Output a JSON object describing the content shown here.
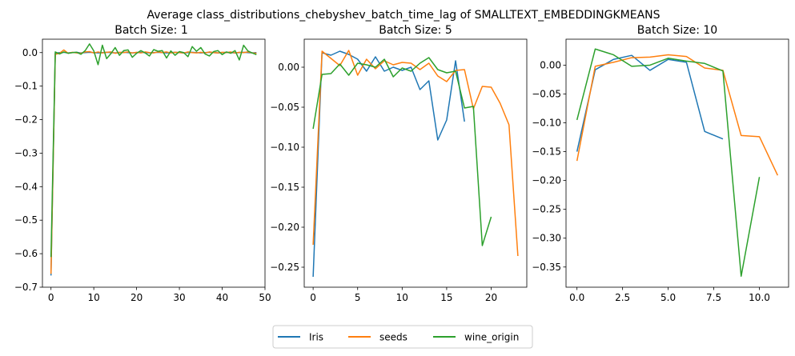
{
  "suptitle": "Average class_distributions_chebyshev_batch_time_lag of SMALLTEXT_EMBEDDINGKMEANS",
  "colors": {
    "Iris": "#1f77b4",
    "seeds": "#ff7f0e",
    "wine_origin": "#2ca02c"
  },
  "legend": {
    "placement": "bottom-center",
    "entries": [
      "Iris",
      "seeds",
      "wine_origin"
    ]
  },
  "chart_data": [
    {
      "type": "line",
      "title": "Batch Size: 1",
      "xlabel": "",
      "ylabel": "",
      "xlim": [
        -2,
        50
      ],
      "ylim": [
        -0.7,
        0.04
      ],
      "xticks": [
        0,
        10,
        20,
        30,
        40,
        50
      ],
      "xtick_labels": [
        "0",
        "10",
        "20",
        "30",
        "40",
        "50"
      ],
      "yticks": [
        0.0,
        -0.1,
        -0.2,
        -0.3,
        -0.4,
        -0.5,
        -0.6,
        -0.7
      ],
      "ytick_labels": [
        "0.0",
        "−0.1",
        "−0.2",
        "−0.3",
        "−0.4",
        "−0.5",
        "−0.6",
        "−0.7"
      ],
      "grid": false,
      "series": [
        {
          "name": "Iris",
          "x": [
            0,
            1,
            2,
            3,
            4,
            5,
            6,
            7,
            8,
            9,
            10,
            11,
            12,
            13,
            14,
            15,
            16,
            17,
            18,
            19,
            20,
            21,
            22,
            23,
            24,
            25,
            26,
            27,
            28,
            29,
            30,
            31,
            32,
            33,
            34,
            35,
            36,
            37,
            38,
            39,
            40,
            41,
            42,
            43,
            44,
            45,
            46,
            47,
            48
          ],
          "y": [
            -0.665,
            -0.002,
            0.0,
            0.001,
            -0.001,
            0.0,
            0.001,
            -0.001,
            0.0,
            0.001,
            0.0,
            -0.001,
            0.0,
            0.001,
            0.0,
            -0.001,
            0.0,
            0.001,
            0.0,
            -0.001,
            0.0,
            0.001,
            0.0,
            -0.001,
            0.0,
            0.001,
            0.0,
            -0.001,
            0.0,
            0.001,
            0.0,
            -0.001,
            0.0,
            0.001,
            0.0,
            -0.001,
            0.0,
            0.001,
            0.0,
            -0.001,
            0.0,
            0.001,
            0.0,
            -0.001,
            0.0,
            0.001,
            0.0,
            -0.001,
            0.0
          ]
        },
        {
          "name": "seeds",
          "x": [
            0,
            1,
            2,
            3,
            4,
            5,
            6,
            7,
            8,
            9,
            10,
            11,
            12,
            13,
            14,
            15,
            16,
            17,
            18,
            19,
            20,
            21,
            22,
            23,
            24,
            25,
            26,
            27,
            28,
            29,
            30,
            31,
            32,
            33,
            34,
            35,
            36,
            37,
            38,
            39,
            40,
            41,
            42,
            43,
            44,
            45,
            46,
            47,
            48
          ],
          "y": [
            -0.66,
            -0.005,
            -0.002,
            0.008,
            -0.002,
            0.001,
            -0.001,
            -0.002,
            0.002,
            0.003,
            -0.001,
            0.002,
            -0.001,
            0.001,
            0.002,
            -0.002,
            0.001,
            0.0,
            0.002,
            -0.001,
            0.001,
            -0.001,
            0.002,
            0.0,
            -0.001,
            0.002,
            0.0,
            0.002,
            -0.001,
            0.001,
            0.0,
            -0.001,
            0.002,
            0.0,
            -0.001,
            0.001,
            -0.001,
            0.002,
            0.0,
            -0.001,
            0.001,
            0.0,
            0.002,
            -0.001,
            0.001,
            0.0,
            0.002,
            -0.001,
            -0.002
          ]
        },
        {
          "name": "wine_origin",
          "x": [
            0,
            1,
            2,
            3,
            4,
            5,
            6,
            7,
            8,
            9,
            10,
            11,
            12,
            13,
            14,
            15,
            16,
            17,
            18,
            19,
            20,
            21,
            22,
            23,
            24,
            25,
            26,
            27,
            28,
            29,
            30,
            31,
            32,
            33,
            34,
            35,
            36,
            37,
            38,
            39,
            40,
            41,
            42,
            43,
            44,
            45,
            46,
            47,
            48
          ],
          "y": [
            -0.61,
            0.002,
            -0.004,
            0.002,
            -0.002,
            0.0,
            0.001,
            -0.005,
            0.006,
            0.026,
            0.005,
            -0.036,
            0.022,
            -0.018,
            -0.003,
            0.015,
            -0.008,
            0.006,
            0.008,
            -0.014,
            -0.002,
            0.006,
            -0.001,
            -0.01,
            0.009,
            0.004,
            0.006,
            -0.016,
            0.005,
            -0.008,
            0.003,
            0.0,
            -0.012,
            0.018,
            0.004,
            0.015,
            -0.004,
            -0.01,
            0.003,
            0.006,
            -0.006,
            0.002,
            -0.002,
            0.006,
            -0.022,
            0.022,
            0.005,
            -0.001,
            -0.006
          ]
        }
      ]
    },
    {
      "type": "line",
      "title": "Batch Size: 5",
      "xlabel": "",
      "ylabel": "",
      "xlim": [
        -1,
        24
      ],
      "ylim": [
        -0.275,
        0.035
      ],
      "xticks": [
        0,
        5,
        10,
        15,
        20
      ],
      "xtick_labels": [
        "0",
        "5",
        "10",
        "15",
        "20"
      ],
      "yticks": [
        0.0,
        -0.05,
        -0.1,
        -0.15,
        -0.2,
        -0.25
      ],
      "ytick_labels": [
        "0.00",
        "−0.05",
        "−0.10",
        "−0.15",
        "−0.20",
        "−0.25"
      ],
      "grid": false,
      "series": [
        {
          "name": "Iris",
          "x": [
            0,
            1,
            2,
            3,
            4,
            5,
            6,
            7,
            8,
            9,
            10,
            11,
            12,
            13,
            14,
            15,
            16,
            17
          ],
          "y": [
            -0.262,
            0.018,
            0.015,
            0.02,
            0.016,
            0.01,
            -0.005,
            0.013,
            -0.005,
            0.0,
            -0.004,
            0.0,
            -0.028,
            -0.017,
            -0.091,
            -0.066,
            0.008,
            -0.068
          ]
        },
        {
          "name": "seeds",
          "x": [
            0,
            1,
            2,
            3,
            4,
            5,
            6,
            7,
            8,
            9,
            10,
            11,
            12,
            13,
            14,
            15,
            16,
            17,
            18,
            19,
            20,
            21,
            22,
            23
          ],
          "y": [
            -0.222,
            0.02,
            0.011,
            0.002,
            0.021,
            -0.01,
            0.01,
            -0.002,
            0.008,
            0.003,
            0.006,
            0.005,
            -0.003,
            0.005,
            -0.011,
            -0.018,
            -0.004,
            -0.003,
            -0.052,
            -0.024,
            -0.025,
            -0.045,
            -0.072,
            -0.236
          ]
        },
        {
          "name": "wine_origin",
          "x": [
            0,
            1,
            2,
            3,
            4,
            5,
            6,
            7,
            8,
            9,
            10,
            11,
            12,
            13,
            14,
            15,
            16,
            17,
            18,
            19,
            20
          ],
          "y": [
            -0.077,
            -0.009,
            -0.008,
            0.004,
            -0.01,
            0.005,
            0.003,
            0.0,
            0.01,
            -0.012,
            -0.001,
            -0.005,
            0.005,
            0.012,
            -0.003,
            -0.007,
            -0.005,
            -0.051,
            -0.049,
            -0.223,
            -0.187
          ]
        }
      ]
    },
    {
      "type": "line",
      "title": "Batch Size: 10",
      "xlabel": "",
      "ylabel": "",
      "xlim": [
        -0.6,
        11.6
      ],
      "ylim": [
        -0.385,
        0.045
      ],
      "xticks": [
        0,
        2.5,
        5,
        7.5,
        10
      ],
      "xtick_labels": [
        "0.0",
        "2.5",
        "5.0",
        "7.5",
        "10.0"
      ],
      "yticks": [
        0.0,
        -0.05,
        -0.1,
        -0.15,
        -0.2,
        -0.25,
        -0.3,
        -0.35
      ],
      "ytick_labels": [
        "0.00",
        "−0.05",
        "−0.10",
        "−0.15",
        "−0.20",
        "−0.25",
        "−0.30",
        "−0.35"
      ],
      "grid": false,
      "series": [
        {
          "name": "Iris",
          "x": [
            0,
            1,
            2,
            3,
            4,
            5,
            6,
            7,
            8
          ],
          "y": [
            -0.15,
            -0.008,
            0.01,
            0.017,
            -0.009,
            0.01,
            0.005,
            -0.115,
            -0.128
          ]
        },
        {
          "name": "seeds",
          "x": [
            0,
            1,
            2,
            3,
            4,
            5,
            6,
            7,
            8,
            9,
            10,
            11
          ],
          "y": [
            -0.166,
            -0.002,
            0.005,
            0.013,
            0.014,
            0.018,
            0.015,
            -0.005,
            -0.009,
            -0.122,
            -0.124,
            -0.191
          ]
        },
        {
          "name": "wine_origin",
          "x": [
            0,
            1,
            2,
            3,
            4,
            5,
            6,
            7,
            8,
            9,
            10
          ],
          "y": [
            -0.095,
            0.028,
            0.018,
            -0.002,
            0.0,
            0.012,
            0.007,
            0.003,
            -0.01,
            -0.366,
            -0.194
          ]
        }
      ]
    }
  ]
}
